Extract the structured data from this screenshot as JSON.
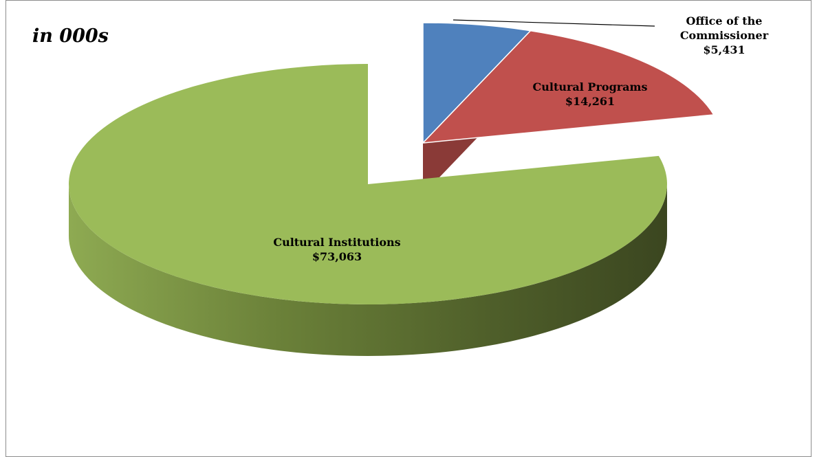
{
  "chart_data": {
    "type": "pie",
    "unit_label": "in 000s",
    "slices": [
      {
        "name": "Office of the Commissioner",
        "value": 5431,
        "value_label": "$5,431",
        "color": "#4F81BD",
        "exploded": true
      },
      {
        "name": "Cultural Programs",
        "value": 14261,
        "value_label": "$14,261",
        "color": "#C0504D",
        "exploded": true
      },
      {
        "name": "Cultural Institutions",
        "value": 73063,
        "value_label": "$73,063",
        "color": "#9BBB59",
        "exploded": false
      }
    ]
  }
}
